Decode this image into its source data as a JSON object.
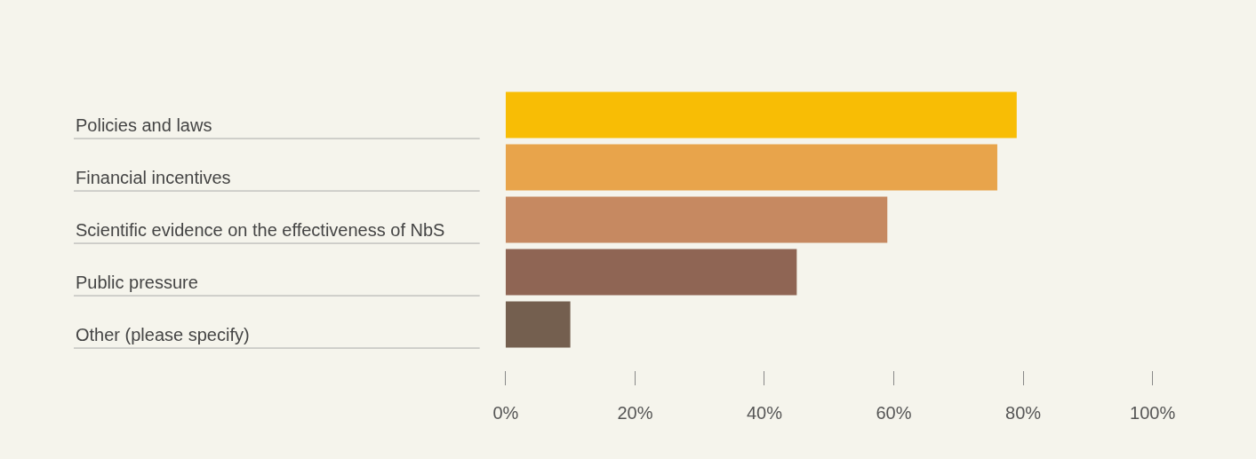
{
  "chart_data": {
    "type": "bar",
    "orientation": "horizontal",
    "categories": [
      "Policies and laws",
      "Financial incentives",
      "Scientific evidence on the effectiveness of NbS",
      "Public pressure",
      "Other (please specify)"
    ],
    "values": [
      79,
      76,
      59,
      45,
      10
    ],
    "colors": [
      "#f8bd05",
      "#e8a44b",
      "#c68961",
      "#8f6554",
      "#745f4f"
    ],
    "xlim": [
      0,
      100
    ],
    "xticks": [
      {
        "value": 0,
        "label": "0%"
      },
      {
        "value": 20,
        "label": "20%"
      },
      {
        "value": 40,
        "label": "40%"
      },
      {
        "value": 60,
        "label": "60%"
      },
      {
        "value": 80,
        "label": "80%"
      },
      {
        "value": 100,
        "label": "100%"
      }
    ],
    "grid": false,
    "legend": false
  }
}
